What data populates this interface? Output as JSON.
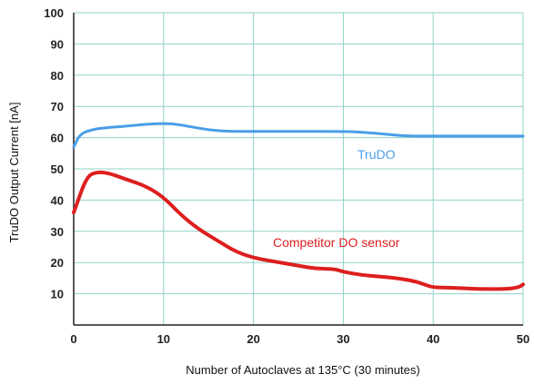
{
  "chart_data": {
    "type": "line",
    "xlabel": "Number of Autoclaves at 135°C (30 minutes)",
    "ylabel": "TruDO Output Current [nA]",
    "xlim": [
      0,
      50
    ],
    "ylim": [
      0,
      100
    ],
    "xticks": [
      "0",
      "10",
      "20",
      "30",
      "40",
      "50"
    ],
    "yticks": [
      "10",
      "20",
      "30",
      "40",
      "50",
      "60",
      "70",
      "80",
      "90",
      "100"
    ],
    "grid": true,
    "colors": {
      "grid": "#8fd3c8",
      "axis": "#222222"
    },
    "series": [
      {
        "name": "TruDO",
        "color": "#4a9ee8",
        "x": [
          0,
          0.5,
          1,
          2,
          3,
          5,
          7,
          9,
          11,
          13,
          15,
          17,
          20,
          25,
          30,
          32,
          35,
          37,
          39,
          42,
          45,
          48,
          50
        ],
        "y": [
          57,
          60,
          61.5,
          62.5,
          63,
          63.5,
          64,
          64.5,
          64.5,
          63.5,
          62.5,
          62,
          62,
          62,
          62,
          61.8,
          61,
          60.5,
          60.5,
          60.5,
          60.5,
          60.5,
          60.5
        ]
      },
      {
        "name": "Competitor DO sensor",
        "color": "#dd1f1f",
        "x": [
          0,
          0.5,
          1,
          1.5,
          2,
          3,
          4,
          5,
          6,
          8,
          10,
          12,
          14,
          16,
          18,
          20,
          22,
          25,
          27,
          29,
          30,
          32,
          34,
          36,
          38,
          39,
          40,
          42,
          45,
          48,
          49.5,
          50
        ],
        "y": [
          36,
          40,
          44,
          47,
          48.5,
          49,
          48.5,
          47.5,
          46.5,
          44.5,
          41,
          35,
          30.5,
          27,
          23.5,
          21.5,
          20.5,
          19,
          18,
          18,
          17,
          16,
          15.5,
          15,
          14,
          13,
          12,
          12,
          11.5,
          11.5,
          12,
          13
        ]
      }
    ]
  }
}
